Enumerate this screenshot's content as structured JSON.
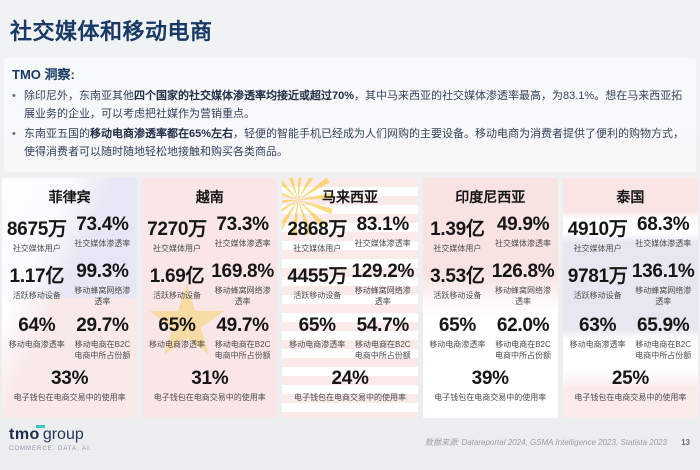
{
  "page": {
    "title": "社交媒体和移动电商",
    "page_number": "13"
  },
  "insights": {
    "heading": "TMO 洞察:",
    "bullets": [
      {
        "pre": "除印尼外，东南亚其他",
        "bold": "四个国家的社交媒体渗透率均接近或超过70%",
        "post": "，其中马来西亚的社交媒体渗透率最高，为83.1%。想在马来西亚拓展业务的企业，可以考虑把社媒作为营销重点。"
      },
      {
        "pre": "东南亚五国的",
        "bold": "移动电商渗透率都在65%左右",
        "post": "，轻便的智能手机已经成为人们网购的主要设备。移动电商为消费者提供了便利的购物方式，使得消费者可以随时随地轻松地接触和购买各类商品。"
      }
    ]
  },
  "stat_labels": {
    "social_users": "社交媒体用户",
    "social_pen": "社交媒体渗透率",
    "devices": "活跃移动设备",
    "cellular": "移动蜂窝网络渗透率",
    "mcommerce_pen": "移动电商渗透率",
    "b2c_share": "移动电商在B2C电商中所占份额",
    "ewallet": "电子钱包在电商交易中的使用率"
  },
  "countries": [
    {
      "name": "菲律宾",
      "social_users": "8675万",
      "social_pen": "73.4%",
      "devices": "1.17亿",
      "cellular": "99.3%",
      "mcommerce_pen": "64%",
      "b2c_share": "29.7%",
      "ewallet": "33%"
    },
    {
      "name": "越南",
      "social_users": "7270万",
      "social_pen": "73.3%",
      "devices": "1.69亿",
      "cellular": "169.8%",
      "mcommerce_pen": "65%",
      "b2c_share": "49.7%",
      "ewallet": "31%"
    },
    {
      "name": "马来西亚",
      "social_users": "2868万",
      "social_pen": "83.1%",
      "devices": "4455万",
      "cellular": "129.2%",
      "mcommerce_pen": "65%",
      "b2c_share": "54.7%",
      "ewallet": "24%"
    },
    {
      "name": "印度尼西亚",
      "social_users": "1.39亿",
      "social_pen": "49.9%",
      "devices": "3.53亿",
      "cellular": "126.8%",
      "mcommerce_pen": "65%",
      "b2c_share": "62.0%",
      "ewallet": "39%"
    },
    {
      "name": "泰国",
      "social_users": "4910万",
      "social_pen": "68.3%",
      "devices": "9781万",
      "cellular": "136.1%",
      "mcommerce_pen": "63%",
      "b2c_share": "65.9%",
      "ewallet": "25%"
    }
  ],
  "footer": {
    "logo_tmo": "tmo",
    "logo_group": "group",
    "logo_tagline": "COMMERCE. DATA. AI.",
    "source": "数据来源: Datareportal 2024, GSMA Intelligence 2023, Statista 2023"
  },
  "colors": {
    "title_navy": "#1a3a66",
    "logo_teal": "#3ec6c9",
    "panel_bg": "#ffffff",
    "slide_bg": "#eceef0"
  }
}
